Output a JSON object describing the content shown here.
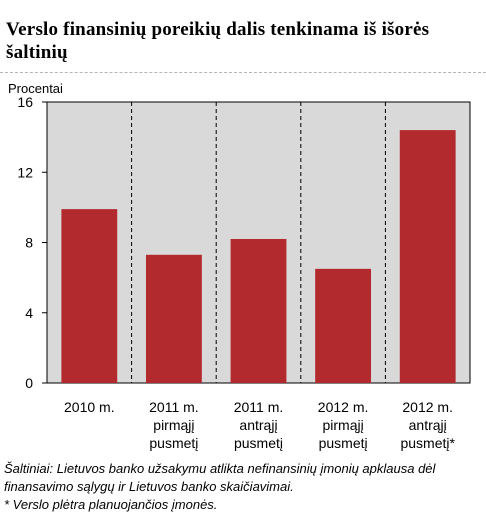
{
  "title": "Verslo finansinių poreikių dalis tenkinama iš išorės šaltinių",
  "source_note": "Šaltiniai: Lietuvos banko užsakymu atlikta nefinansinių įmonių apklausa dėl finansavimo sąlygų ir Lietuvos banko skaičiavimai.",
  "footnote": "* Verslo plėtra planuojančios įmonės.",
  "colors": {
    "bar": "#b22a2e",
    "plot_background": "#d9d9d9",
    "gridline": "#000000"
  },
  "chart_data": {
    "type": "bar",
    "title": "",
    "ylabel": "Procentai",
    "xlabel": "",
    "ylim": [
      0,
      16
    ],
    "yticks": [
      0,
      4,
      8,
      12,
      16
    ],
    "grid": "vertical dashed separators between categories",
    "categories": [
      [
        "2010 m."
      ],
      [
        "2011 m.",
        "pirmąjį",
        "pusmetį"
      ],
      [
        "2011 m.",
        "antrąjį",
        "pusmetį"
      ],
      [
        "2012 m.",
        "pirmąjį",
        "pusmetį"
      ],
      [
        "2012 m.",
        "antrąjį",
        "pusmetį*"
      ]
    ],
    "values": [
      9.9,
      7.3,
      8.2,
      6.5,
      14.4
    ]
  }
}
